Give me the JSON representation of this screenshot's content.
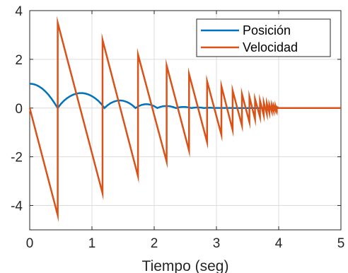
{
  "chart_data": {
    "type": "line",
    "title": "",
    "xlabel": "Tiempo (seg)",
    "ylabel": "",
    "xlim": [
      0,
      5
    ],
    "ylim": [
      -5,
      4
    ],
    "xticks": [
      0,
      1,
      2,
      3,
      4,
      5
    ],
    "yticks": [
      -4,
      -2,
      0,
      2,
      4
    ],
    "xtick_labels": [
      "0",
      "1",
      "2",
      "3",
      "4",
      "5"
    ],
    "ytick_labels": [
      "-4",
      "-2",
      "0",
      "2",
      "4"
    ],
    "grid": true,
    "legend_position": "top-right",
    "series": [
      {
        "name": "Posición",
        "color": "#0072BD",
        "points": [
          [
            0.0,
            1.0
          ],
          [
            0.05,
            0.987
          ],
          [
            0.1,
            0.95
          ],
          [
            0.15,
            0.887
          ],
          [
            0.2,
            0.8
          ],
          [
            0.25,
            0.687
          ],
          [
            0.3,
            0.55
          ],
          [
            0.35,
            0.387
          ],
          [
            0.4,
            0.2
          ],
          [
            0.45,
            0.0
          ],
          [
            0.5,
            0.168
          ],
          [
            0.55,
            0.3
          ],
          [
            0.6,
            0.405
          ],
          [
            0.65,
            0.487
          ],
          [
            0.7,
            0.55
          ],
          [
            0.75,
            0.592
          ],
          [
            0.8,
            0.614
          ],
          [
            0.85,
            0.614
          ],
          [
            0.9,
            0.592
          ],
          [
            0.95,
            0.55
          ],
          [
            1.0,
            0.487
          ],
          [
            1.05,
            0.405
          ],
          [
            1.1,
            0.3
          ],
          [
            1.15,
            0.168
          ],
          [
            1.2,
            0.0
          ],
          [
            1.25,
            0.113
          ],
          [
            1.3,
            0.2
          ],
          [
            1.35,
            0.262
          ],
          [
            1.4,
            0.3
          ],
          [
            1.45,
            0.313
          ],
          [
            1.5,
            0.3
          ],
          [
            1.55,
            0.262
          ],
          [
            1.6,
            0.2
          ],
          [
            1.65,
            0.113
          ],
          [
            1.7,
            0.0
          ],
          [
            1.75,
            0.079
          ],
          [
            1.8,
            0.131
          ],
          [
            1.85,
            0.158
          ],
          [
            1.9,
            0.158
          ],
          [
            1.95,
            0.131
          ],
          [
            2.0,
            0.079
          ],
          [
            2.05,
            0.0
          ],
          [
            2.1,
            0.049
          ],
          [
            2.15,
            0.078
          ],
          [
            2.2,
            0.086
          ],
          [
            2.25,
            0.075
          ],
          [
            2.3,
            0.044
          ],
          [
            2.35,
            0.0
          ],
          [
            2.4,
            0.03
          ],
          [
            2.45,
            0.045
          ],
          [
            2.5,
            0.044
          ],
          [
            2.55,
            0.028
          ],
          [
            2.6,
            0.0
          ],
          [
            2.65,
            0.02
          ],
          [
            2.7,
            0.027
          ],
          [
            2.75,
            0.02
          ],
          [
            2.8,
            0.0
          ],
          [
            2.85,
            0.012
          ],
          [
            2.9,
            0.014
          ],
          [
            2.95,
            0.006
          ],
          [
            3.0,
            0.005
          ],
          [
            3.1,
            0.004
          ],
          [
            3.2,
            0.003
          ],
          [
            3.3,
            0.002
          ],
          [
            3.4,
            0.001
          ],
          [
            3.6,
            0.0
          ],
          [
            4.0,
            0.0
          ],
          [
            5.0,
            0.0
          ]
        ]
      },
      {
        "name": "Velocidad",
        "color": "#D95319",
        "points": [
          [
            0.0,
            0.0
          ],
          [
            0.45,
            -4.4
          ],
          [
            0.45,
            3.5
          ],
          [
            1.17,
            -3.5
          ],
          [
            1.17,
            2.8
          ],
          [
            1.74,
            -2.8
          ],
          [
            1.74,
            2.2
          ],
          [
            2.2,
            -2.2
          ],
          [
            2.2,
            1.75
          ],
          [
            2.56,
            -1.75
          ],
          [
            2.56,
            1.4
          ],
          [
            2.85,
            -1.4
          ],
          [
            2.85,
            1.1
          ],
          [
            3.08,
            -1.1
          ],
          [
            3.08,
            0.9
          ],
          [
            3.26,
            -0.9
          ],
          [
            3.26,
            0.72
          ],
          [
            3.41,
            -0.72
          ],
          [
            3.41,
            0.58
          ],
          [
            3.53,
            -0.58
          ],
          [
            3.53,
            0.46
          ],
          [
            3.62,
            -0.46
          ],
          [
            3.62,
            0.37
          ],
          [
            3.7,
            -0.37
          ],
          [
            3.7,
            0.3
          ],
          [
            3.76,
            -0.3
          ],
          [
            3.76,
            0.24
          ],
          [
            3.81,
            -0.24
          ],
          [
            3.81,
            0.19
          ],
          [
            3.85,
            -0.19
          ],
          [
            3.85,
            0.15
          ],
          [
            3.89,
            -0.15
          ],
          [
            3.89,
            0.12
          ],
          [
            3.92,
            -0.12
          ],
          [
            3.92,
            0.1
          ],
          [
            3.95,
            -0.1
          ],
          [
            3.95,
            0.08
          ],
          [
            3.97,
            -0.08
          ],
          [
            3.97,
            0.05
          ],
          [
            4.0,
            0.0
          ],
          [
            5.0,
            0.0
          ]
        ]
      }
    ]
  }
}
